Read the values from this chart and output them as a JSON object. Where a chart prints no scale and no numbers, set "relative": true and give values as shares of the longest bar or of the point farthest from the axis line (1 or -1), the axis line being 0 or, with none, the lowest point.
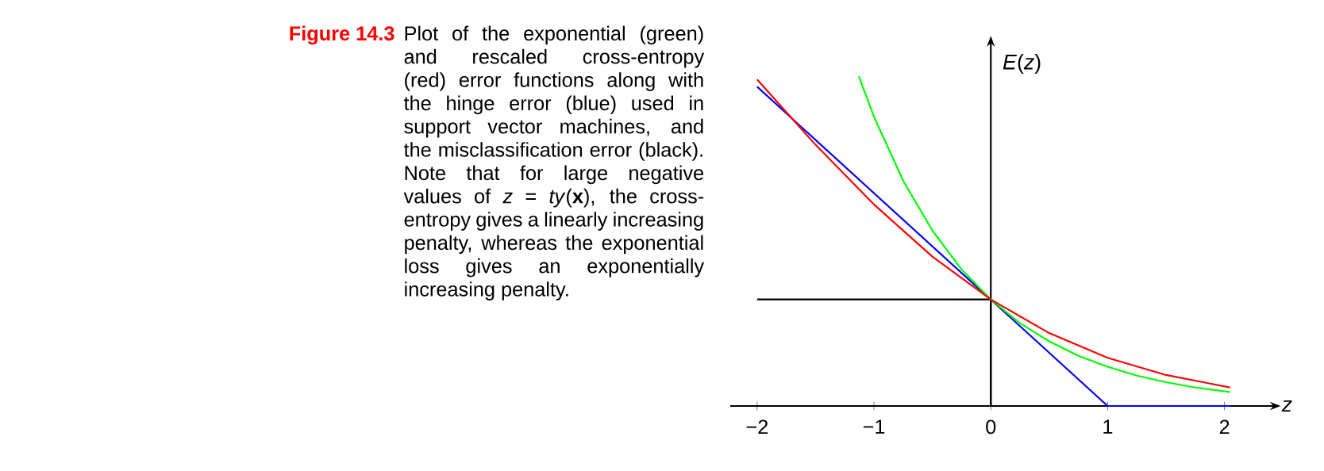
{
  "chart_data": {
    "type": "line",
    "relative": true,
    "title": "Figure 14.3",
    "subtitle": "Plot of the exponential (green) and rescaled cross-entropy (red) error functions along with the hinge error (blue) used in support vector machines, and the misclassification error (black). Note that for large negative values of *z* = *ty*(**x**), the cross-entropy gives a linearly increasing penalty, whereas the exponential loss gives an exponentially increasing penalty.",
    "xlabel": "*z*",
    "ylabel": "*E*(*z*)",
    "xlim": [
      -2.23,
      2.39
    ],
    "xticks": [
      {
        "value": -2,
        "label": "−2"
      },
      {
        "value": -1,
        "label": "−1"
      },
      0,
      1,
      2
    ],
    "series": [
      {
        "color": "#000000",
        "x": [
          -2,
          0,
          0
        ],
        "values": [
          0.323,
          0.323,
          0
        ]
      },
      {
        "color": "#0000ff",
        "x": [
          -2,
          1,
          2.05
        ],
        "values": [
          0.968,
          0,
          0
        ]
      },
      {
        "color": "#00ff00",
        "x": [
          -1.13,
          -1,
          -0.75,
          -0.5,
          -0.25,
          0,
          0.25,
          0.5,
          0.75,
          1,
          1.25,
          1.5,
          1.75,
          2.05
        ],
        "values": [
          1.0,
          0.877,
          0.683,
          0.532,
          0.414,
          0.323,
          0.251,
          0.196,
          0.152,
          0.119,
          0.092,
          0.072,
          0.056,
          0.042
        ]
      },
      {
        "color": "#ff0000",
        "x": [
          -2,
          -1.5,
          -1,
          -0.5,
          0,
          0.5,
          1,
          1.5,
          2.05
        ],
        "values": [
          0.99,
          0.792,
          0.611,
          0.453,
          0.323,
          0.221,
          0.146,
          0.094,
          0.056
        ]
      }
    ]
  }
}
